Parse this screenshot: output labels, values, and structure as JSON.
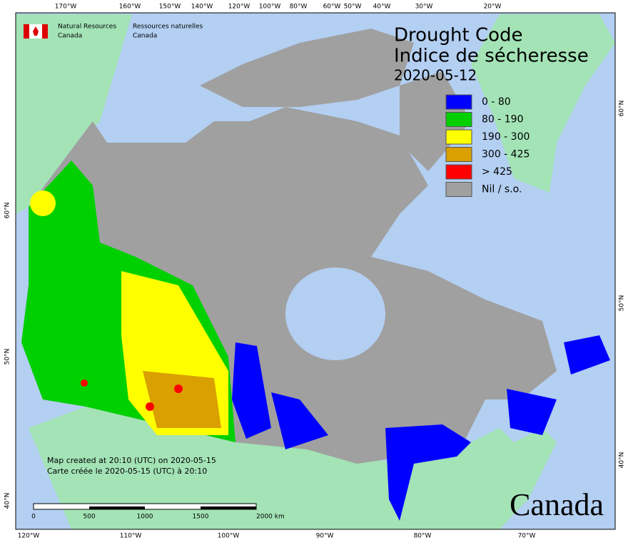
{
  "header": {
    "agency_en": "Natural Resources",
    "country_en": "Canada",
    "agency_fr": "Ressources naturelles",
    "country_fr": "Canada",
    "title": "Drought Code",
    "title_fr": "Indice de sécheresse",
    "date": "2020-05-12"
  },
  "legend": [
    {
      "label": "0 - 80",
      "color": "#0000ff"
    },
    {
      "label": "80 - 190",
      "color": "#00d000"
    },
    {
      "label": "190 - 300",
      "color": "#ffff00"
    },
    {
      "label": "300 - 425",
      "color": "#d9a000"
    },
    {
      "label": "> 425",
      "color": "#ff0000"
    },
    {
      "label": "Nil / s.o.",
      "color": "#a0a0a0"
    }
  ],
  "graticule": {
    "top": [
      "170°W",
      "160°W",
      "150°W",
      "140°W",
      "120°W",
      "100°W",
      "80°W",
      "60°W",
      "50°W",
      "40°W",
      "30°W",
      "20°W"
    ],
    "bottom": [
      "120°W",
      "110°W",
      "100°W",
      "90°W",
      "80°W",
      "70°W"
    ],
    "left": [
      "60°N",
      "50°N",
      "40°N"
    ],
    "right": [
      "60°N",
      "50°N",
      "40°N"
    ]
  },
  "notes": [
    "Map created at 20:10 (UTC) on 2020-05-15",
    "Carte créée le 2020-05-15 (UTC) à 20:10"
  ],
  "scale": [
    "0",
    "500",
    "1000",
    "1500",
    "2000 km"
  ],
  "wordmark": "Canada"
}
